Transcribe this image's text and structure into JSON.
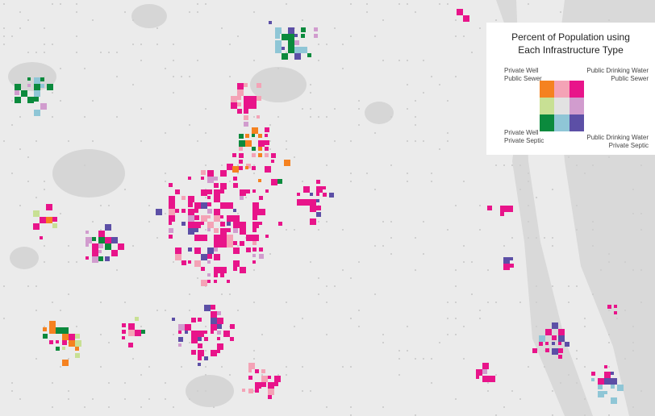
{
  "legend": {
    "title_line1": "Percent of Population using",
    "title_line2": "Each Infrastructure Type",
    "top_left": [
      "Private Well",
      "Public Sewer"
    ],
    "top_right": [
      "Public Drinking Water",
      "Public Sewer"
    ],
    "bottom_left": [
      "Private Well",
      "Private Septic"
    ],
    "bottom_right": [
      "Public Drinking Water",
      "Private Septic"
    ],
    "colors": [
      [
        "#f58220",
        "#f4a3b6",
        "#e8148a"
      ],
      [
        "#c8e094",
        "#e2e2e2",
        "#d19cce"
      ],
      [
        "#0b8a3d",
        "#8fc6d6",
        "#5c4fa6"
      ]
    ]
  }
}
